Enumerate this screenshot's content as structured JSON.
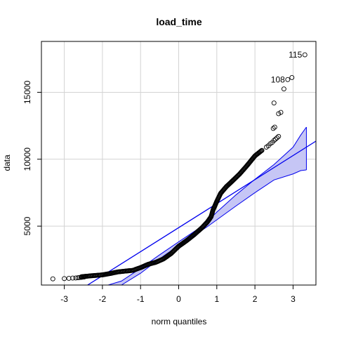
{
  "chart_data": {
    "type": "scatter",
    "title": "load_time",
    "xlabel": "norm quantiles",
    "ylabel": "data",
    "xlim": [
      -3.6,
      3.6
    ],
    "ylim": [
      600,
      18800
    ],
    "xticks": [
      -3,
      -2,
      -1,
      0,
      1,
      2,
      3
    ],
    "yticks": [
      5000,
      10000,
      15000
    ],
    "grid": true,
    "colors": {
      "points": "#000000",
      "line": "#0000ee",
      "band_fill": "#c6c6f5",
      "band_line": "#0000ee",
      "grid": "#d3d3d3",
      "frame": "#000000"
    },
    "reference_line": {
      "x": [
        -3.6,
        3.6
      ],
      "y": [
        -1575,
        11350
      ]
    },
    "envelope": {
      "x": [
        -1.85,
        -1.5,
        -1.0,
        -0.5,
        0.0,
        0.5,
        0.75,
        1.0,
        1.5,
        2.0,
        2.5,
        3.0,
        3.2,
        3.35
      ],
      "upper": [
        600,
        900,
        1850,
        2860,
        3830,
        4780,
        5360,
        6050,
        7330,
        8500,
        9600,
        10900,
        11800,
        12400
      ],
      "lower": [
        600,
        600,
        1480,
        2560,
        3570,
        4480,
        4960,
        5470,
        6500,
        7500,
        8450,
        8900,
        9150,
        9200
      ]
    },
    "curve": [
      [
        -2.55,
        1220
      ],
      [
        -2.3,
        1290
      ],
      [
        -2.0,
        1360
      ],
      [
        -1.8,
        1460
      ],
      [
        -1.6,
        1580
      ],
      [
        -1.2,
        1700
      ],
      [
        -1.0,
        1900
      ],
      [
        -0.8,
        2150
      ],
      [
        -0.6,
        2300
      ],
      [
        -0.4,
        2550
      ],
      [
        -0.2,
        2950
      ],
      [
        0.0,
        3500
      ],
      [
        0.2,
        3900
      ],
      [
        0.4,
        4350
      ],
      [
        0.6,
        4850
      ],
      [
        0.75,
        5300
      ],
      [
        0.85,
        5700
      ],
      [
        0.9,
        6200
      ],
      [
        1.0,
        6850
      ],
      [
        1.1,
        7450
      ],
      [
        1.25,
        7950
      ],
      [
        1.4,
        8350
      ],
      [
        1.6,
        8900
      ],
      [
        1.8,
        9550
      ],
      [
        2.0,
        10250
      ],
      [
        2.2,
        10700
      ]
    ],
    "points": [
      [
        -3.3,
        1060
      ],
      [
        -3.0,
        1080
      ],
      [
        -2.88,
        1100
      ],
      [
        -2.78,
        1120
      ],
      [
        -2.7,
        1130
      ],
      [
        -2.64,
        1150
      ],
      [
        -2.6,
        1160
      ],
      [
        -2.56,
        1175
      ],
      [
        -2.53,
        1190
      ],
      [
        -2.5,
        1200
      ],
      [
        -2.47,
        1210
      ],
      [
        2.3,
        10900
      ],
      [
        2.35,
        11000
      ],
      [
        2.4,
        11150
      ],
      [
        2.45,
        11250
      ],
      [
        2.5,
        11400
      ],
      [
        2.54,
        11500
      ],
      [
        2.58,
        11600
      ],
      [
        2.62,
        11700
      ],
      [
        2.48,
        12300
      ],
      [
        2.52,
        12400
      ],
      [
        2.62,
        13400
      ],
      [
        2.68,
        13500
      ],
      [
        2.5,
        14200
      ],
      [
        2.76,
        15250
      ],
      [
        2.86,
        15950
      ],
      [
        2.97,
        16100
      ],
      [
        3.31,
        17800
      ]
    ],
    "labeled_points": [
      {
        "label": "115",
        "x": 3.31,
        "y": 17800
      },
      {
        "label": "108",
        "x": 2.86,
        "y": 15950
      }
    ]
  }
}
